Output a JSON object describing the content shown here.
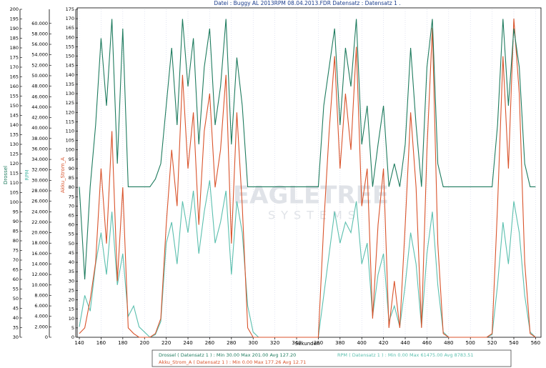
{
  "chart_data": {
    "type": "line",
    "title": "Datei : Buggy AL 2013RPM 08.04.2013.FDR    Datensatz : Datensatz 1 .",
    "xlabel": "Sekunden",
    "watermark": [
      "EAGLETREE",
      "SYSTEMS"
    ],
    "x": [
      140,
      145,
      150,
      155,
      160,
      165,
      170,
      175,
      180,
      185,
      190,
      195,
      200,
      205,
      210,
      215,
      220,
      225,
      230,
      235,
      240,
      245,
      250,
      255,
      260,
      265,
      270,
      275,
      280,
      285,
      290,
      295,
      300,
      305,
      310,
      315,
      320,
      325,
      330,
      335,
      340,
      345,
      350,
      355,
      360,
      365,
      370,
      375,
      380,
      385,
      390,
      395,
      400,
      405,
      410,
      415,
      420,
      425,
      430,
      435,
      440,
      445,
      450,
      455,
      460,
      465,
      470,
      475,
      480,
      485,
      490,
      495,
      500,
      505,
      510,
      515,
      520,
      525,
      530,
      535,
      540,
      545,
      550,
      555,
      560
    ],
    "xlim": [
      138,
      565
    ],
    "xticks": [
      140,
      160,
      180,
      200,
      220,
      240,
      260,
      280,
      300,
      320,
      340,
      360,
      380,
      400,
      420,
      440,
      460,
      480,
      500,
      520,
      540,
      560
    ],
    "ylim": [
      30,
      200
    ],
    "yticks": [
      30,
      35,
      40,
      45,
      50,
      55,
      60,
      65,
      70,
      75,
      80,
      85,
      90,
      95,
      100,
      105,
      110,
      115,
      120,
      125,
      130,
      135,
      140,
      145,
      150,
      155,
      160,
      165,
      170,
      175,
      180,
      185,
      190,
      195,
      200
    ],
    "y2lim": [
      0,
      62700
    ],
    "y2ticks": [
      0,
      {
        "value": 2000,
        "label": "2.000"
      },
      {
        "value": 4000,
        "label": "4.000"
      },
      {
        "value": 6000,
        "label": "6.000"
      },
      {
        "value": 8000,
        "label": "8.000"
      },
      {
        "value": 10000,
        "label": "10.000"
      },
      {
        "value": 12000,
        "label": "12.000"
      },
      {
        "value": 14000,
        "label": "14.000"
      },
      {
        "value": 16000,
        "label": "16.000"
      },
      {
        "value": 18000,
        "label": "18.000"
      },
      {
        "value": 20000,
        "label": "20.000"
      },
      {
        "value": 22000,
        "label": "22.000"
      },
      {
        "value": 24000,
        "label": "24.000"
      },
      {
        "value": 26000,
        "label": "26.000"
      },
      {
        "value": 28000,
        "label": "28.000"
      },
      {
        "value": 30000,
        "label": "30.000"
      },
      {
        "value": 32000,
        "label": "32.000"
      },
      {
        "value": 34000,
        "label": "34.000"
      },
      {
        "value": 36000,
        "label": "36.000"
      },
      {
        "value": 38000,
        "label": "38.000"
      },
      {
        "value": 40000,
        "label": "40.000"
      },
      {
        "value": 42000,
        "label": "42.000"
      },
      {
        "value": 44000,
        "label": "44.000"
      },
      {
        "value": 46000,
        "label": "46.000"
      },
      {
        "value": 48000,
        "label": "48.000"
      },
      {
        "value": 50000,
        "label": "50.000"
      },
      {
        "value": 52000,
        "label": "52.000"
      },
      {
        "value": 54000,
        "label": "54.000"
      },
      {
        "value": 56000,
        "label": "56.000"
      },
      {
        "value": 58000,
        "label": "58.000"
      },
      {
        "value": 60000,
        "label": "60.000"
      }
    ],
    "y3lim": [
      0,
      175
    ],
    "y3ticks": [
      0,
      5,
      10,
      15,
      20,
      25,
      30,
      35,
      40,
      45,
      50,
      55,
      60,
      65,
      70,
      75,
      80,
      85,
      90,
      95,
      100,
      105,
      110,
      115,
      120,
      125,
      130,
      135,
      140,
      145,
      150,
      155,
      160,
      165,
      170,
      175
    ],
    "grid": true,
    "series": [
      {
        "name": "Drossel",
        "color": "#1e7b5e",
        "axis": "y",
        "legend": "Drossel ( Datensatz 1 ) : Min 30.00   Max 201.00   Avg 127.20",
        "values": [
          108,
          60,
          108,
          140,
          185,
          150,
          195,
          120,
          190,
          108,
          108,
          108,
          108,
          108,
          112,
          120,
          150,
          180,
          140,
          195,
          160,
          185,
          130,
          170,
          190,
          140,
          160,
          195,
          130,
          175,
          150,
          108,
          108,
          108,
          108,
          108,
          108,
          108,
          108,
          108,
          108,
          108,
          108,
          108,
          108,
          150,
          170,
          190,
          140,
          180,
          160,
          195,
          130,
          150,
          108,
          130,
          150,
          108,
          120,
          108,
          130,
          180,
          140,
          108,
          170,
          195,
          120,
          108,
          108,
          108,
          108,
          108,
          108,
          108,
          108,
          108,
          108,
          140,
          195,
          150,
          190,
          170,
          120,
          108,
          108
        ]
      },
      {
        "name": "RPM",
        "color": "#5bbfae",
        "axis": "y2",
        "legend": "RPM ( Datensatz 1 ) : Min 0.00   Max 61475.00   Avg 8783.51",
        "values": [
          2000,
          8000,
          5000,
          14000,
          20000,
          12000,
          24000,
          10000,
          16000,
          4000,
          6000,
          2000,
          1000,
          0,
          500,
          3000,
          18000,
          22000,
          14000,
          26000,
          20000,
          28000,
          16000,
          24000,
          30000,
          18000,
          22000,
          28000,
          12000,
          26000,
          20000,
          6000,
          1000,
          0,
          0,
          0,
          0,
          0,
          0,
          0,
          0,
          0,
          0,
          0,
          0,
          8000,
          16000,
          24000,
          18000,
          22000,
          20000,
          26000,
          14000,
          18000,
          4000,
          12000,
          16000,
          3000,
          6000,
          2000,
          10000,
          20000,
          14000,
          2000,
          16000,
          24000,
          10000,
          1000,
          0,
          0,
          0,
          0,
          0,
          0,
          0,
          0,
          500,
          10000,
          22000,
          14000,
          26000,
          20000,
          8000,
          1000,
          0
        ]
      },
      {
        "name": "Akku_Strom_A",
        "color": "#d9532b",
        "axis": "y3",
        "legend": "Akku_Strom_A ( Datensatz 1 ) : Min 0.00   Max 177.26   Avg 12.71",
        "values": [
          2,
          5,
          20,
          40,
          90,
          50,
          110,
          30,
          80,
          5,
          2,
          0,
          0,
          0,
          2,
          10,
          60,
          100,
          70,
          140,
          90,
          120,
          60,
          110,
          130,
          80,
          100,
          140,
          50,
          120,
          70,
          5,
          0,
          0,
          0,
          0,
          0,
          0,
          0,
          0,
          0,
          0,
          0,
          0,
          0,
          60,
          110,
          150,
          90,
          130,
          100,
          155,
          70,
          90,
          10,
          60,
          90,
          5,
          30,
          5,
          60,
          120,
          80,
          5,
          100,
          165,
          50,
          2,
          0,
          0,
          0,
          0,
          0,
          0,
          0,
          0,
          2,
          70,
          150,
          90,
          170,
          130,
          40,
          2,
          0
        ]
      }
    ]
  }
}
